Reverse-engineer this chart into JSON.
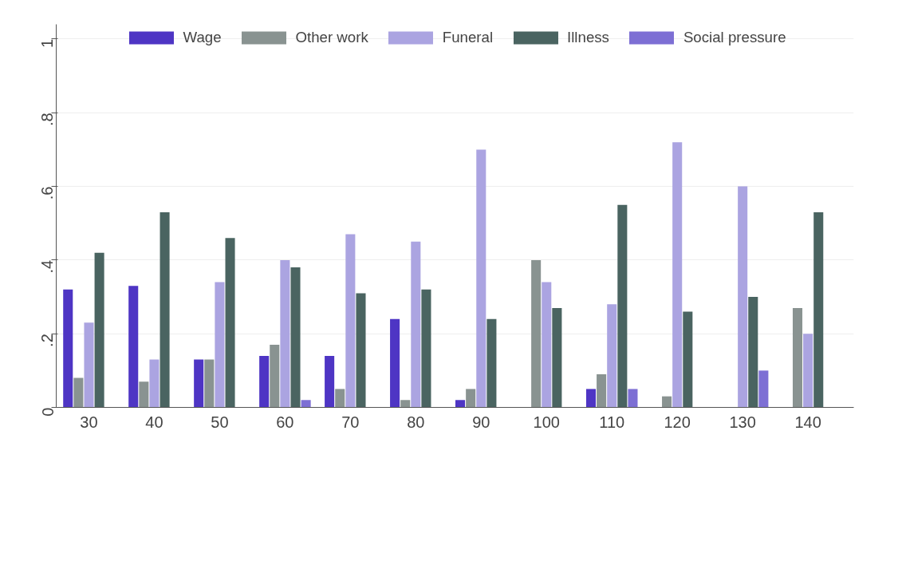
{
  "chart_data": {
    "type": "bar",
    "categories": [
      "30",
      "40",
      "50",
      "60",
      "70",
      "80",
      "90",
      "100",
      "110",
      "120",
      "130",
      "140"
    ],
    "series": [
      {
        "name": "Wage",
        "color": "#4e35c4",
        "values": [
          0.32,
          0.33,
          0.13,
          0.14,
          0.14,
          0.24,
          0.02,
          null,
          0.05,
          null,
          null,
          null
        ]
      },
      {
        "name": "Other work",
        "color": "#899391",
        "values": [
          0.08,
          0.07,
          0.13,
          0.17,
          0.05,
          0.02,
          0.05,
          0.4,
          0.09,
          0.03,
          null,
          0.27
        ]
      },
      {
        "name": "Funeral",
        "color": "#aba4e1",
        "values": [
          0.23,
          0.13,
          0.34,
          0.4,
          0.47,
          0.45,
          0.7,
          0.34,
          0.28,
          0.72,
          0.6,
          0.2
        ]
      },
      {
        "name": "Illness",
        "color": "#4a6461",
        "values": [
          0.42,
          0.53,
          0.46,
          0.38,
          0.31,
          0.32,
          0.24,
          0.27,
          0.55,
          0.26,
          0.3,
          0.53
        ]
      },
      {
        "name": "Social pressure",
        "color": "#7d6fd4",
        "values": [
          null,
          null,
          null,
          0.02,
          null,
          null,
          null,
          null,
          0.05,
          null,
          0.1,
          null
        ]
      }
    ],
    "ylim": [
      0,
      1.04
    ],
    "yticks": [
      {
        "value": 0,
        "label": "0"
      },
      {
        "value": 0.2,
        "label": ".2"
      },
      {
        "value": 0.4,
        "label": ".4"
      },
      {
        "value": 0.6,
        "label": ".6"
      },
      {
        "value": 0.8,
        "label": ".8"
      },
      {
        "value": 1,
        "label": "1"
      }
    ],
    "grid": "y",
    "legend": "top"
  }
}
